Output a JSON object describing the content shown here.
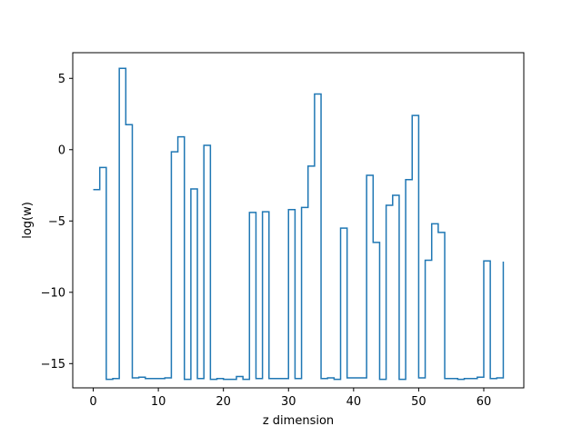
{
  "chart_data": {
    "type": "line",
    "drawstyle": "steps-post",
    "title": "",
    "xlabel": "z dimension",
    "ylabel": "log(w)",
    "xlim": [
      -3.15,
      66.15
    ],
    "ylim": [
      -16.7,
      6.8
    ],
    "xticks": [
      0,
      10,
      20,
      30,
      40,
      50,
      60
    ],
    "xtick_labels": [
      "0",
      "10",
      "20",
      "30",
      "40",
      "50",
      "60"
    ],
    "yticks": [
      5,
      0,
      -5,
      -10,
      -15
    ],
    "ytick_labels": [
      "5",
      "0",
      "−5",
      "−10",
      "−15"
    ],
    "grid": false,
    "legend": "none",
    "colors": {
      "line": "#1f77b4"
    },
    "series": [
      {
        "x": [
          0,
          1,
          2,
          3,
          4,
          5,
          6,
          7,
          8,
          9,
          10,
          11,
          12,
          13,
          14,
          15,
          16,
          17,
          18,
          19,
          20,
          21,
          22,
          23,
          24,
          25,
          26,
          27,
          28,
          29,
          30,
          31,
          32,
          33,
          34,
          35,
          36,
          37,
          38,
          39,
          40,
          41,
          42,
          43,
          44,
          45,
          46,
          47,
          48,
          49,
          50,
          51,
          52,
          53,
          54,
          55,
          56,
          57,
          58,
          59,
          60,
          61,
          62,
          63
        ],
        "y": [
          -2.8,
          -1.25,
          -16.1,
          -16.05,
          5.7,
          1.75,
          -16.0,
          -15.95,
          -16.05,
          -16.05,
          -16.05,
          -16.0,
          -0.15,
          0.9,
          -16.1,
          -2.75,
          -16.05,
          0.3,
          -16.1,
          -16.05,
          -16.1,
          -16.1,
          -15.9,
          -16.1,
          -4.4,
          -16.05,
          -4.35,
          -16.05,
          -16.05,
          -16.05,
          -4.2,
          -16.05,
          -4.05,
          -1.15,
          3.9,
          -16.05,
          -16.0,
          -16.1,
          -5.5,
          -16.0,
          -16.0,
          -16.0,
          -1.8,
          -6.5,
          -16.1,
          -3.9,
          -3.2,
          -16.1,
          -2.1,
          2.4,
          -16.0,
          -7.75,
          -5.2,
          -5.8,
          -16.05,
          -16.05,
          -16.1,
          -16.05,
          -16.05,
          -15.95,
          -7.8,
          -16.05,
          -16.0,
          -7.85
        ]
      }
    ]
  }
}
